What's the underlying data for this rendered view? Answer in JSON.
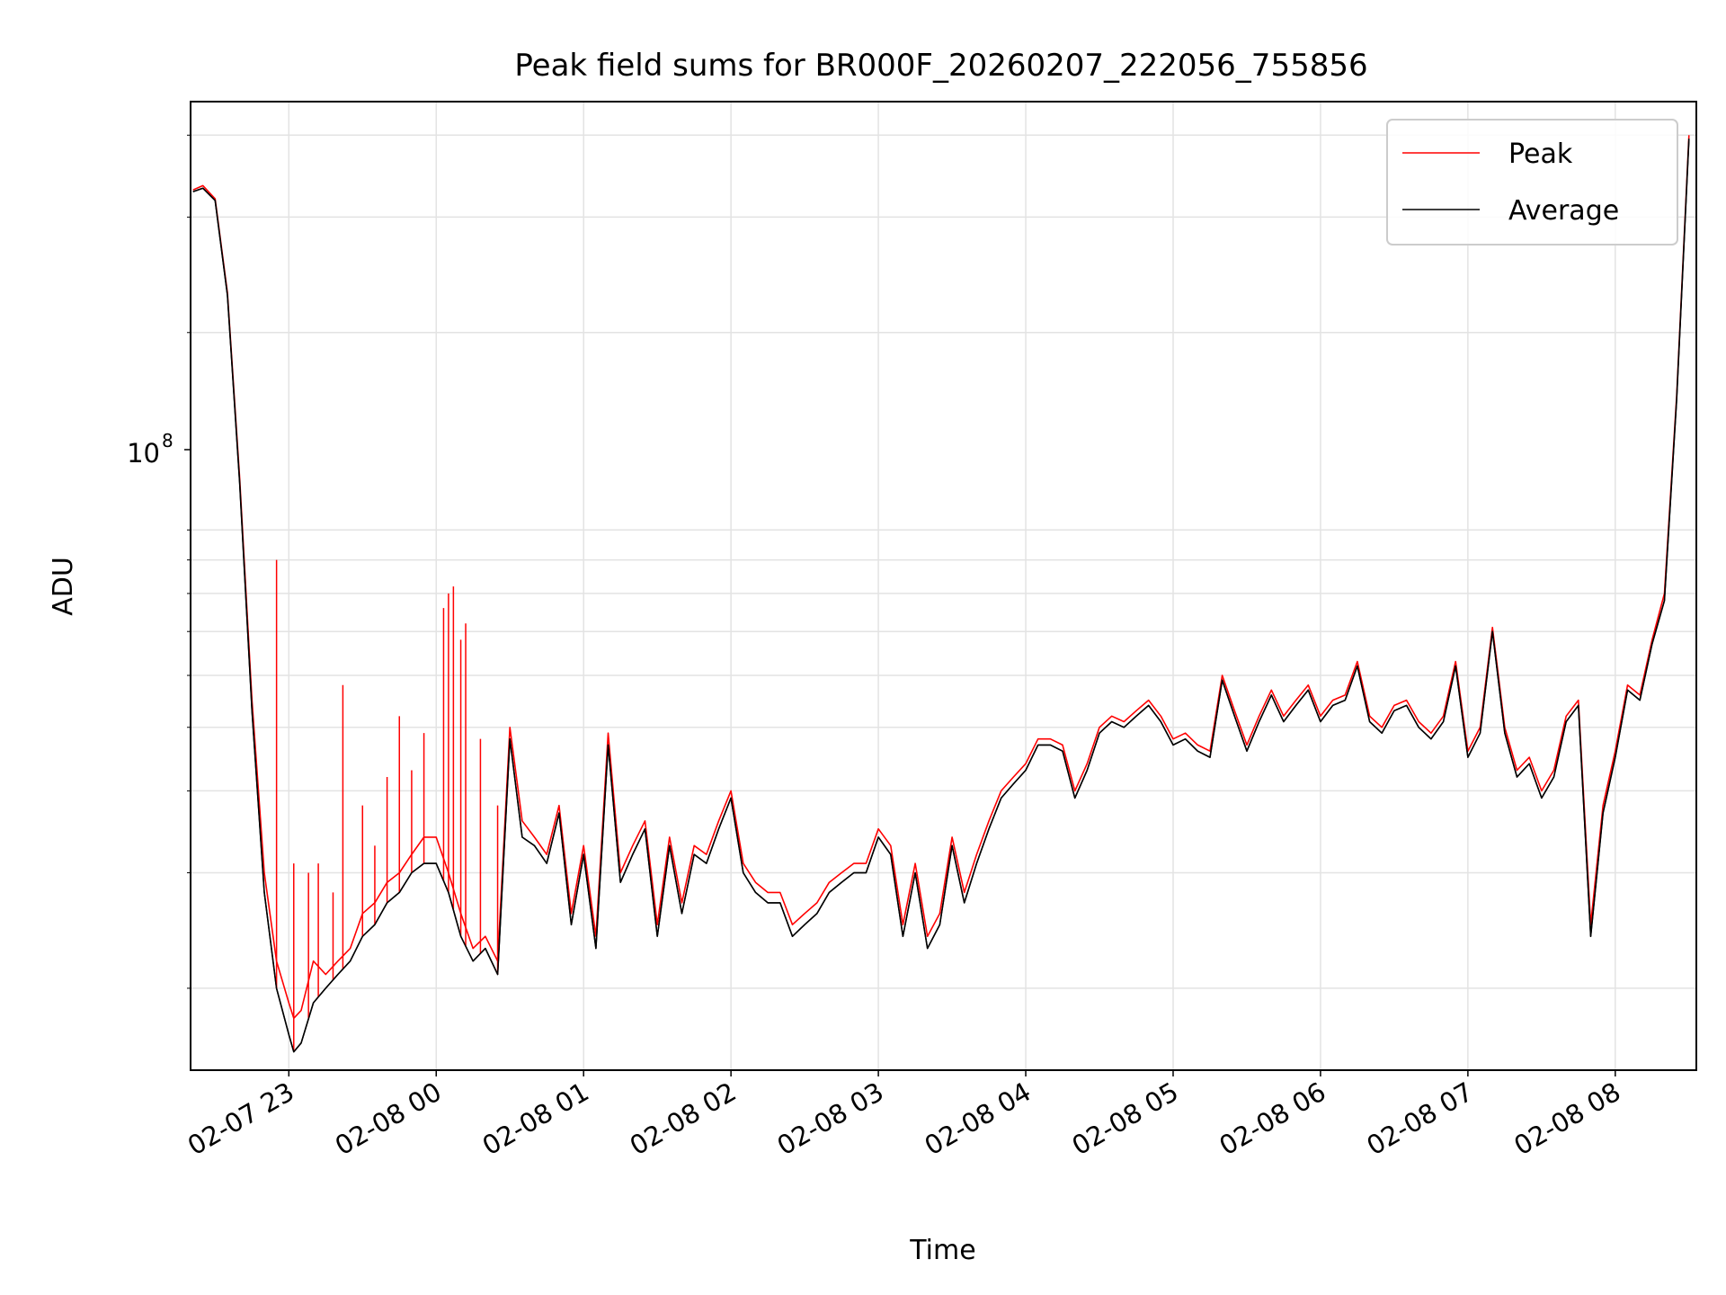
{
  "chart_data": {
    "type": "line",
    "title": "Peak field sums for BR000F_20260207_222056_755856",
    "xlabel": "Time",
    "ylabel": "ADU",
    "yscale": "log",
    "grid": true,
    "legend_position": "top-right",
    "x_ticks": [
      "02-07 23",
      "02-08 00",
      "02-08 01",
      "02-08 02",
      "02-08 03",
      "02-08 04",
      "02-08 05",
      "02-08 06",
      "02-08 07",
      "02-08 08"
    ],
    "y_ticks": [
      {
        "label_base": "10",
        "label_exp": "8",
        "value": 100000000
      }
    ],
    "xlim": [
      "2026-02-07 22:20",
      "2026-02-08 08:33"
    ],
    "ylim": [
      15000000,
      450000000
    ],
    "series": [
      {
        "name": "Peak",
        "color": "#ff0000",
        "x": [
          "22:21",
          "22:25",
          "22:30",
          "22:35",
          "22:40",
          "22:45",
          "22:50",
          "22:55",
          "23:00",
          "23:02",
          "23:05",
          "23:10",
          "23:15",
          "23:20",
          "23:25",
          "23:30",
          "23:35",
          "23:40",
          "23:45",
          "23:50",
          "23:55",
          "00:00",
          "00:05",
          "00:10",
          "00:15",
          "00:20",
          "00:25",
          "00:30",
          "00:35",
          "00:40",
          "00:45",
          "00:50",
          "00:55",
          "01:00",
          "01:05",
          "01:10",
          "01:15",
          "01:20",
          "01:25",
          "01:30",
          "01:35",
          "01:40",
          "01:45",
          "01:50",
          "01:55",
          "02:00",
          "02:05",
          "02:10",
          "02:15",
          "02:20",
          "02:25",
          "02:30",
          "02:35",
          "02:40",
          "02:45",
          "02:50",
          "02:55",
          "03:00",
          "03:05",
          "03:10",
          "03:15",
          "03:20",
          "03:25",
          "03:30",
          "03:35",
          "03:40",
          "03:45",
          "03:50",
          "03:55",
          "04:00",
          "04:05",
          "04:10",
          "04:15",
          "04:20",
          "04:25",
          "04:30",
          "04:35",
          "04:40",
          "04:45",
          "04:50",
          "04:55",
          "05:00",
          "05:05",
          "05:10",
          "05:15",
          "05:20",
          "05:25",
          "05:30",
          "05:35",
          "05:40",
          "05:45",
          "05:50",
          "05:55",
          "06:00",
          "06:05",
          "06:10",
          "06:15",
          "06:20",
          "06:25",
          "06:30",
          "06:35",
          "06:40",
          "06:45",
          "06:50",
          "06:55",
          "07:00",
          "07:05",
          "07:10",
          "07:15",
          "07:20",
          "07:25",
          "07:30",
          "07:35",
          "07:40",
          "07:45",
          "07:50",
          "07:55",
          "08:00",
          "08:05",
          "08:10",
          "08:15",
          "08:20",
          "08:25",
          "08:30"
        ],
        "y": [
          330000000,
          335000000,
          320000000,
          230000000,
          120000000,
          55000000,
          30000000,
          22000000,
          19000000,
          18000000,
          18500000,
          22000000,
          21000000,
          22000000,
          23000000,
          26000000,
          27000000,
          29000000,
          30000000,
          32000000,
          34000000,
          34000000,
          30000000,
          26000000,
          23000000,
          24000000,
          22000000,
          50000000,
          36000000,
          34000000,
          32000000,
          38000000,
          26000000,
          33000000,
          24000000,
          49000000,
          30000000,
          33000000,
          36000000,
          25000000,
          34000000,
          27000000,
          33000000,
          32000000,
          36000000,
          40000000,
          31000000,
          29000000,
          28000000,
          28000000,
          25000000,
          26000000,
          27000000,
          29000000,
          30000000,
          31000000,
          31000000,
          35000000,
          33000000,
          25000000,
          31000000,
          24000000,
          26000000,
          34000000,
          28000000,
          32000000,
          36000000,
          40000000,
          42000000,
          44000000,
          48000000,
          48000000,
          47000000,
          40000000,
          44000000,
          50000000,
          52000000,
          51000000,
          53000000,
          55000000,
          52000000,
          48000000,
          49000000,
          47000000,
          46000000,
          60000000,
          53000000,
          47000000,
          52000000,
          57000000,
          52000000,
          55000000,
          58000000,
          52000000,
          55000000,
          56000000,
          63000000,
          52000000,
          50000000,
          54000000,
          55000000,
          51000000,
          49000000,
          52000000,
          63000000,
          46000000,
          50000000,
          71000000,
          50000000,
          43000000,
          45000000,
          40000000,
          43000000,
          52000000,
          55000000,
          25000000,
          38000000,
          46000000,
          58000000,
          56000000,
          68000000,
          80000000,
          160000000,
          400000000
        ]
      },
      {
        "name": "Average",
        "color": "#000000",
        "x": [
          "22:21",
          "22:25",
          "22:30",
          "22:35",
          "22:40",
          "22:45",
          "22:50",
          "22:55",
          "23:00",
          "23:02",
          "23:05",
          "23:10",
          "23:15",
          "23:20",
          "23:25",
          "23:30",
          "23:35",
          "23:40",
          "23:45",
          "23:50",
          "23:55",
          "00:00",
          "00:05",
          "00:10",
          "00:15",
          "00:20",
          "00:25",
          "00:30",
          "00:35",
          "00:40",
          "00:45",
          "00:50",
          "00:55",
          "01:00",
          "01:05",
          "01:10",
          "01:15",
          "01:20",
          "01:25",
          "01:30",
          "01:35",
          "01:40",
          "01:45",
          "01:50",
          "01:55",
          "02:00",
          "02:05",
          "02:10",
          "02:15",
          "02:20",
          "02:25",
          "02:30",
          "02:35",
          "02:40",
          "02:45",
          "02:50",
          "02:55",
          "03:00",
          "03:05",
          "03:10",
          "03:15",
          "03:20",
          "03:25",
          "03:30",
          "03:35",
          "03:40",
          "03:45",
          "03:50",
          "03:55",
          "04:00",
          "04:05",
          "04:10",
          "04:15",
          "04:20",
          "04:25",
          "04:30",
          "04:35",
          "04:40",
          "04:45",
          "04:50",
          "04:55",
          "05:00",
          "05:05",
          "05:10",
          "05:15",
          "05:20",
          "05:25",
          "05:30",
          "05:35",
          "05:40",
          "05:45",
          "05:50",
          "05:55",
          "06:00",
          "06:05",
          "06:10",
          "06:15",
          "06:20",
          "06:25",
          "06:30",
          "06:35",
          "06:40",
          "06:45",
          "06:50",
          "06:55",
          "07:00",
          "07:05",
          "07:10",
          "07:15",
          "07:20",
          "07:25",
          "07:30",
          "07:35",
          "07:40",
          "07:45",
          "07:50",
          "07:55",
          "08:00",
          "08:05",
          "08:10",
          "08:15",
          "08:20",
          "08:25",
          "08:30"
        ],
        "y": [
          328000000,
          332000000,
          318000000,
          228000000,
          118000000,
          53000000,
          28000000,
          20000000,
          17000000,
          16000000,
          16500000,
          19000000,
          20000000,
          21000000,
          22000000,
          24000000,
          25000000,
          27000000,
          28000000,
          30000000,
          31000000,
          31000000,
          28000000,
          24000000,
          22000000,
          23000000,
          21000000,
          48000000,
          34000000,
          33000000,
          31000000,
          37000000,
          25000000,
          32000000,
          23000000,
          47000000,
          29000000,
          32000000,
          35000000,
          24000000,
          33000000,
          26000000,
          32000000,
          31000000,
          35000000,
          39000000,
          30000000,
          28000000,
          27000000,
          27000000,
          24000000,
          25000000,
          26000000,
          28000000,
          29000000,
          30000000,
          30000000,
          34000000,
          32000000,
          24000000,
          30000000,
          23000000,
          25000000,
          33000000,
          27000000,
          31000000,
          35000000,
          39000000,
          41000000,
          43000000,
          47000000,
          47000000,
          46000000,
          39000000,
          43000000,
          49000000,
          51000000,
          50000000,
          52000000,
          54000000,
          51000000,
          47000000,
          48000000,
          46000000,
          45000000,
          59000000,
          52000000,
          46000000,
          51000000,
          56000000,
          51000000,
          54000000,
          57000000,
          51000000,
          54000000,
          55000000,
          62000000,
          51000000,
          49000000,
          53000000,
          54000000,
          50000000,
          48000000,
          51000000,
          62000000,
          45000000,
          49000000,
          70000000,
          49000000,
          42000000,
          44000000,
          39000000,
          42000000,
          51000000,
          54000000,
          24000000,
          37000000,
          45000000,
          57000000,
          55000000,
          67000000,
          78000000,
          158000000,
          395000000
        ]
      }
    ],
    "spikes": {
      "series": "Peak",
      "x": [
        "22:55",
        "23:02",
        "23:08",
        "23:12",
        "23:18",
        "23:22",
        "23:30",
        "23:35",
        "23:40",
        "23:45",
        "23:50",
        "23:55",
        "00:03",
        "00:05",
        "00:07",
        "00:10",
        "00:12",
        "00:18",
        "00:25"
      ],
      "y": [
        90000000,
        31000000,
        30000000,
        31000000,
        28000000,
        58000000,
        38000000,
        33000000,
        42000000,
        52000000,
        43000000,
        49000000,
        76000000,
        80000000,
        82000000,
        68000000,
        72000000,
        48000000,
        38000000
      ]
    }
  }
}
